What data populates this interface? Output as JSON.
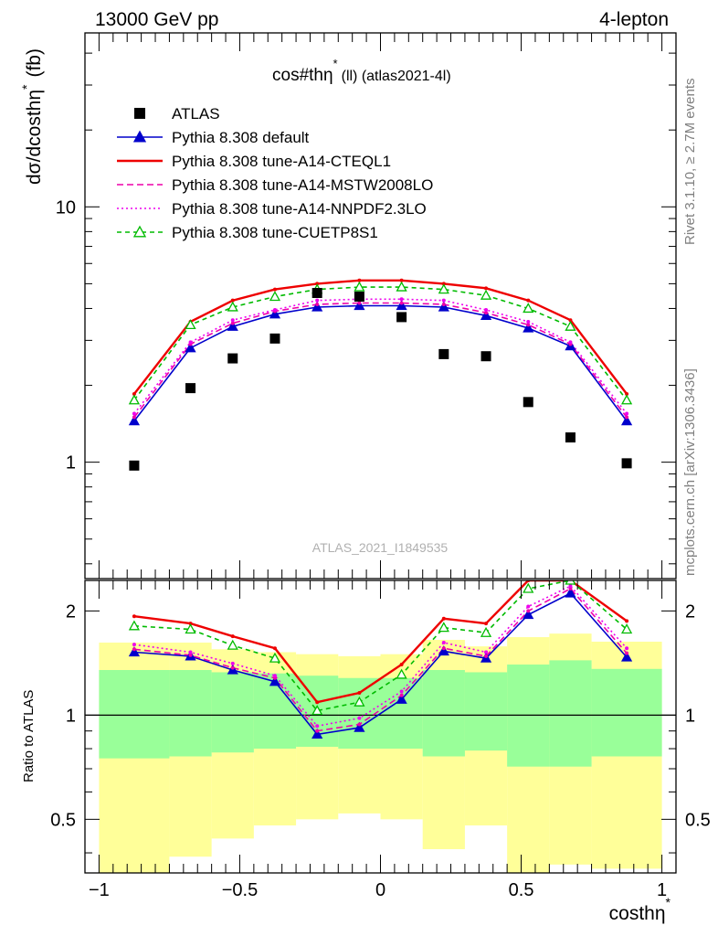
{
  "header": {
    "left": "13000 GeV pp",
    "right": "4-lepton",
    "plot_title": "cos#thη* (ll) (atlas2021-4l)",
    "plot_title_main": "cos#thη",
    "plot_title_sup": "*",
    "plot_title_rest": "(ll) (atlas2021-4l)"
  },
  "side_labels": {
    "rivet": "Rivet 3.1.10, ≥ 2.7M events",
    "mcplots": "mcplots.cern.ch [arXiv:1306.3436]"
  },
  "watermark": "ATLAS_2021_I1849535",
  "axes": {
    "ylabel_main": "dσ/dcosthη",
    "ylabel_main_sup": "*",
    "ylabel_main_unit": "(fb)",
    "ylabel_ratio": "Ratio to ATLAS",
    "xlabel": "costhη",
    "xlabel_sup": "*",
    "main_yticks": [
      "1",
      "10"
    ],
    "ratio_yticks": [
      "0.5",
      "1",
      "2"
    ],
    "xticks": [
      "−1",
      "−0.5",
      "0",
      "0.5",
      "1"
    ]
  },
  "legend": [
    {
      "label": "ATLAS",
      "color": "#000000",
      "style": "square"
    },
    {
      "label": "Pythia 8.308 default",
      "color": "#0000cc",
      "style": "triangle"
    },
    {
      "label": "Pythia 8.308 tune-A14-CTEQL1",
      "color": "#ee0000",
      "style": "solid"
    },
    {
      "label": "Pythia 8.308 tune-A14-MSTW2008LO",
      "color": "#ee00aa",
      "style": "dashed"
    },
    {
      "label": "Pythia 8.308 tune-A14-NNPDF2.3LO",
      "color": "#ee00ee",
      "style": "dotted"
    },
    {
      "label": "Pythia 8.308 tune-CUETP8S1",
      "color": "#00bb00",
      "style": "dashed-open-triangle"
    }
  ],
  "chart_data": {
    "type": "line",
    "x": [
      -0.875,
      -0.675,
      -0.525,
      -0.375,
      -0.225,
      -0.075,
      0.075,
      0.225,
      0.375,
      0.525,
      0.675,
      0.875
    ],
    "bin_edges": [
      -1.0,
      -0.75,
      -0.6,
      -0.45,
      -0.3,
      -0.15,
      0.0,
      0.15,
      0.3,
      0.45,
      0.6,
      0.75,
      1.0
    ],
    "xlim": [
      -1.05,
      1.05
    ],
    "ylim_main": [
      0.35,
      48
    ],
    "yscale_main": "log",
    "ylim_ratio": [
      0.35,
      2.45
    ],
    "yscale_ratio": "log",
    "data": {
      "name": "ATLAS",
      "values": [
        0.97,
        1.95,
        2.55,
        3.05,
        4.6,
        4.45,
        3.7,
        2.65,
        2.6,
        1.72,
        1.25,
        0.99
      ]
    },
    "series": [
      {
        "name": "Pythia 8.308 default",
        "values": [
          1.45,
          2.8,
          3.4,
          3.8,
          4.05,
          4.1,
          4.1,
          4.05,
          3.75,
          3.35,
          2.85,
          1.45
        ]
      },
      {
        "name": "Pythia 8.308 tune-A14-CTEQL1",
        "values": [
          1.85,
          3.55,
          4.3,
          4.75,
          5.0,
          5.15,
          5.15,
          5.0,
          4.8,
          4.3,
          3.6,
          1.85
        ]
      },
      {
        "name": "Pythia 8.308 tune-A14-MSTW2008LO",
        "values": [
          1.5,
          2.9,
          3.5,
          3.9,
          4.15,
          4.2,
          4.2,
          4.15,
          3.85,
          3.45,
          2.9,
          1.5
        ]
      },
      {
        "name": "Pythia 8.308 tune-A14-NNPDF2.3LO",
        "values": [
          1.55,
          2.95,
          3.6,
          3.95,
          4.3,
          4.35,
          4.35,
          4.3,
          3.95,
          3.55,
          2.95,
          1.55
        ]
      },
      {
        "name": "Pythia 8.308 tune-CUETP8S1",
        "values": [
          1.75,
          3.45,
          4.05,
          4.45,
          4.75,
          4.85,
          4.85,
          4.75,
          4.5,
          4.0,
          3.4,
          1.75
        ]
      }
    ],
    "ratio": {
      "series": [
        {
          "name": "Pythia 8.308 default",
          "values": [
            1.52,
            1.48,
            1.35,
            1.25,
            0.88,
            0.92,
            1.11,
            1.53,
            1.46,
            1.95,
            2.25,
            1.47
          ]
        },
        {
          "name": "Pythia 8.308 tune-A14-CTEQL1",
          "values": [
            1.93,
            1.84,
            1.69,
            1.56,
            1.09,
            1.16,
            1.4,
            1.9,
            1.84,
            2.5,
            2.9,
            1.87
          ]
        },
        {
          "name": "Pythia 8.308 tune-A14-MSTW2008LO",
          "values": [
            1.55,
            1.49,
            1.37,
            1.28,
            0.9,
            0.94,
            1.14,
            1.56,
            1.48,
            2.0,
            2.32,
            1.51
          ]
        },
        {
          "name": "Pythia 8.308 tune-A14-NNPDF2.3LO",
          "values": [
            1.6,
            1.52,
            1.41,
            1.3,
            0.93,
            0.98,
            1.17,
            1.62,
            1.52,
            2.06,
            2.36,
            1.56
          ]
        },
        {
          "name": "Pythia 8.308 tune-CUETP8S1",
          "values": [
            1.81,
            1.77,
            1.59,
            1.46,
            1.03,
            1.09,
            1.31,
            1.79,
            1.73,
            2.32,
            2.72,
            1.77
          ]
        }
      ],
      "band_inner": {
        "lo": [
          0.75,
          0.76,
          0.78,
          0.8,
          0.81,
          0.8,
          0.8,
          0.76,
          0.79,
          0.71,
          0.71,
          0.76
        ],
        "hi": [
          1.35,
          1.35,
          1.33,
          1.32,
          1.3,
          1.28,
          1.28,
          1.35,
          1.33,
          1.4,
          1.44,
          1.36
        ]
      },
      "band_outer": {
        "lo": [
          0.35,
          0.39,
          0.44,
          0.48,
          0.5,
          0.52,
          0.5,
          0.41,
          0.48,
          0.35,
          0.37,
          0.36
        ],
        "hi": [
          1.62,
          1.62,
          1.55,
          1.52,
          1.5,
          1.48,
          1.5,
          1.65,
          1.58,
          1.68,
          1.72,
          1.63
        ]
      }
    }
  }
}
